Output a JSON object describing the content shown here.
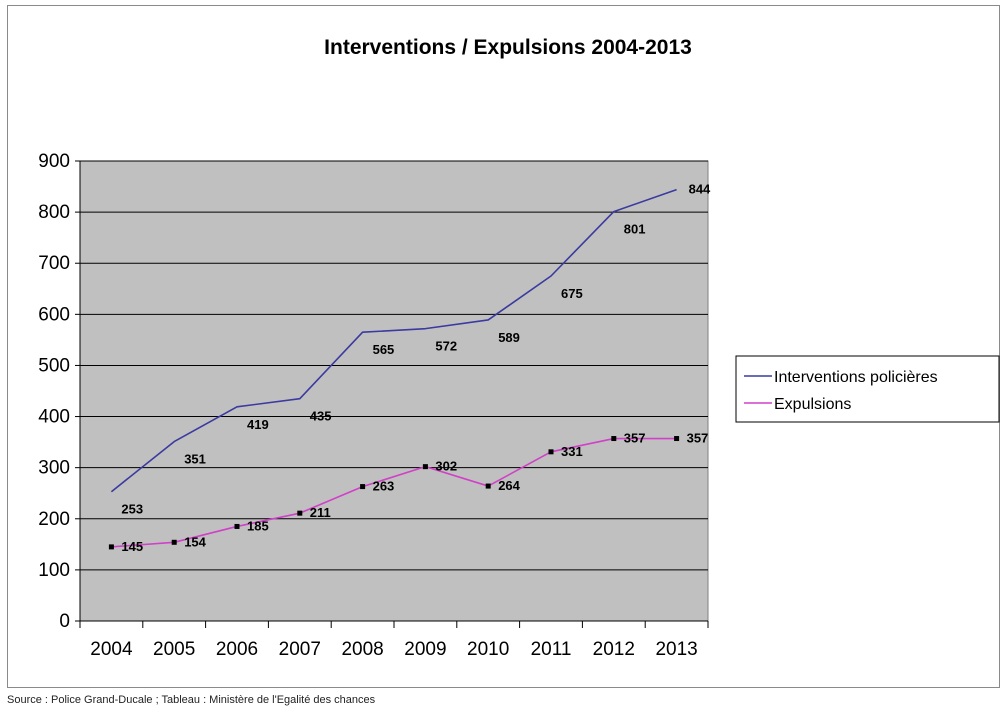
{
  "chart_data": {
    "type": "line",
    "title": "Interventions / Expulsions 2004-2013",
    "xlabel": "",
    "ylabel": "",
    "categories": [
      "2004",
      "2005",
      "2006",
      "2007",
      "2008",
      "2009",
      "2010",
      "2011",
      "2012",
      "2013"
    ],
    "ylim": [
      0,
      900
    ],
    "yticks": [
      0,
      100,
      200,
      300,
      400,
      500,
      600,
      700,
      800,
      900
    ],
    "grid": true,
    "plot_background": "#c0c0c0",
    "legend_position": "right",
    "series": [
      {
        "name": "Interventions policières",
        "color": "#3a3aa0",
        "markers": false,
        "values": [
          253,
          351,
          419,
          435,
          565,
          572,
          589,
          675,
          801,
          844
        ]
      },
      {
        "name": "Expulsions",
        "color": "#d040c8",
        "markers": true,
        "values": [
          145,
          154,
          185,
          211,
          263,
          302,
          264,
          331,
          357,
          357
        ]
      }
    ]
  },
  "footer": {
    "source": "Source : Police Grand-Ducale ; Tableau : Ministère de l'Egalité des chances"
  }
}
